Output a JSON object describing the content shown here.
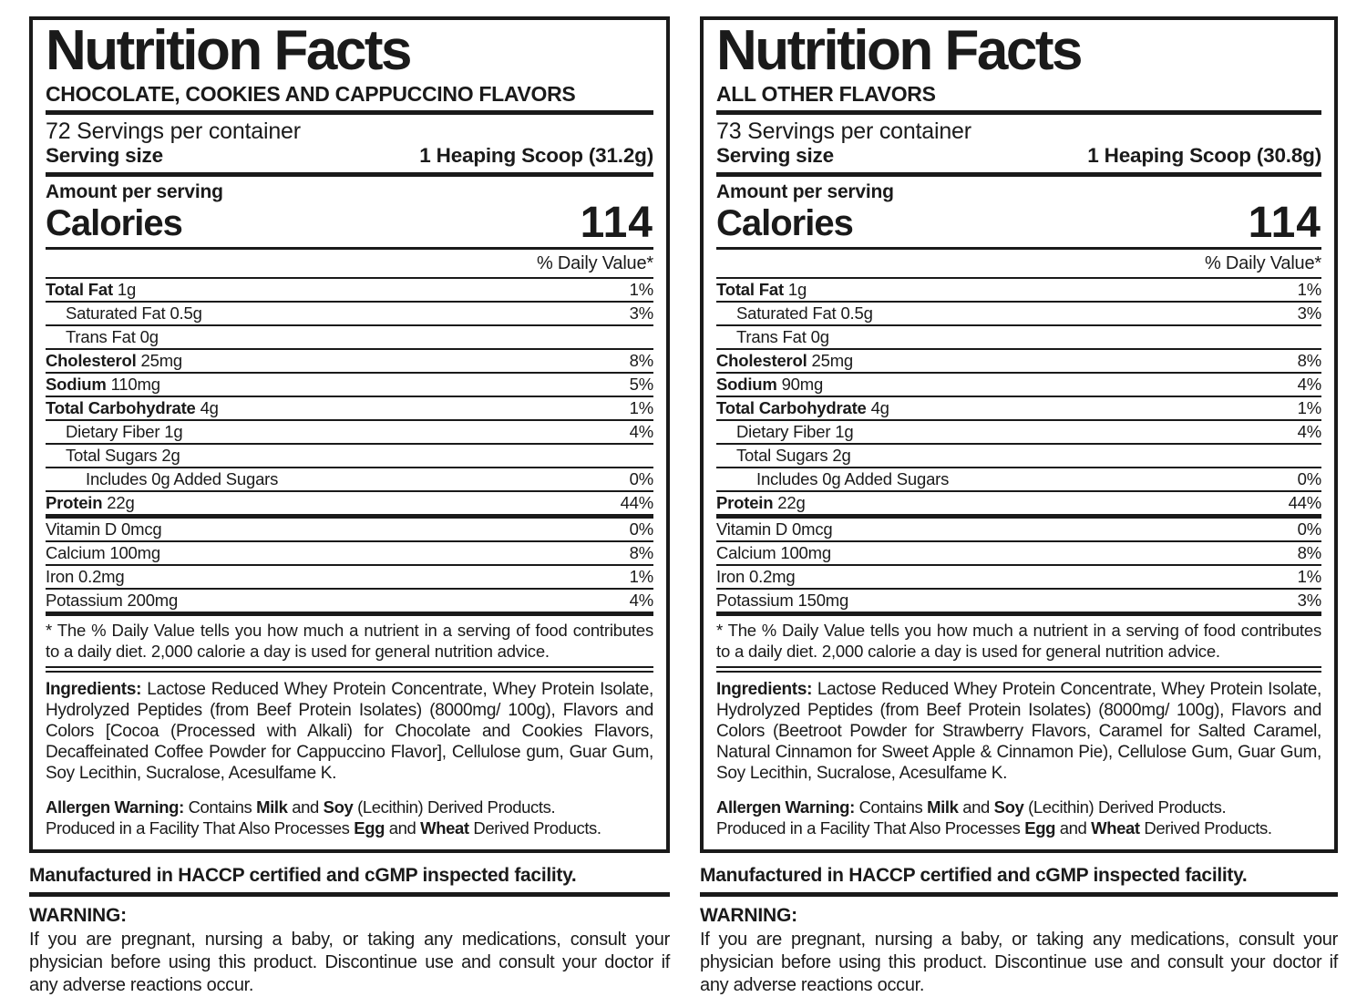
{
  "colors": {
    "ink": "#1a1a1a",
    "paper": "#ffffff"
  },
  "labels": [
    {
      "title": "Nutrition Facts",
      "flavor": "CHOCOLATE, COOKIES AND CAPPUCCINO FLAVORS",
      "servings_per_container": "72 Servings per container",
      "serving_size_label": "Serving size",
      "serving_size_value": "1 Heaping Scoop (31.2g)",
      "amount_per_serving": "Amount per serving",
      "calories_label": "Calories",
      "calories_value": "114",
      "daily_value_header": "% Daily Value*",
      "nutrients": [
        {
          "name": "Total Fat",
          "amount": "1g",
          "dv": "1%",
          "bold": true,
          "indent": 0
        },
        {
          "name": "Saturated Fat",
          "amount": "0.5g",
          "dv": "3%",
          "bold": false,
          "indent": 1
        },
        {
          "name": "Trans Fat",
          "amount": "0g",
          "dv": "",
          "bold": false,
          "indent": 1
        },
        {
          "name": "Cholesterol",
          "amount": "25mg",
          "dv": "8%",
          "bold": true,
          "indent": 0
        },
        {
          "name": "Sodium",
          "amount": "110mg",
          "dv": "5%",
          "bold": true,
          "indent": 0
        },
        {
          "name": "Total Carbohydrate",
          "amount": "4g",
          "dv": "1%",
          "bold": true,
          "indent": 0
        },
        {
          "name": "Dietary Fiber",
          "amount": "1g",
          "dv": "4%",
          "bold": false,
          "indent": 1
        },
        {
          "name": "Total Sugars",
          "amount": "2g",
          "dv": "",
          "bold": false,
          "indent": 1
        },
        {
          "name": "Includes 0g Added Sugars",
          "amount": "",
          "dv": "0%",
          "bold": false,
          "indent": 2
        },
        {
          "name": "Protein",
          "amount": "22g",
          "dv": "44%",
          "bold": true,
          "indent": 0,
          "thick_after": true
        },
        {
          "name": "Vitamin D",
          "amount": "0mcg",
          "dv": "0%",
          "bold": false,
          "indent": 0
        },
        {
          "name": "Calcium",
          "amount": "100mg",
          "dv": "8%",
          "bold": false,
          "indent": 0
        },
        {
          "name": "Iron",
          "amount": "0.2mg",
          "dv": "1%",
          "bold": false,
          "indent": 0
        },
        {
          "name": "Potassium",
          "amount": "200mg",
          "dv": "4%",
          "bold": false,
          "indent": 0,
          "thick_after": true
        }
      ],
      "footnote": "* The % Daily Value tells you how much a nutrient in a serving of food contributes to a daily diet. 2,000 calorie a day is used for general nutrition advice.",
      "ingredients_label": "Ingredients:",
      "ingredients_text": "Lactose Reduced Whey Protein Concentrate, Whey Protein Isolate, Hydrolyzed Peptides (from Beef Protein Isolates) (8000mg/ 100g), Flavors and Colors [Cocoa (Processed with Alkali) for Chocolate and Cookies Flavors, Decaffeinated Coffee Powder for Cappuccino Flavor], Cellulose gum, Guar Gum, Soy Lecithin, Sucralose, Acesulfame K.",
      "allergen_lines": [
        [
          {
            "t": "Allergen Warning:",
            "b": true
          },
          {
            "t": " Contains ",
            "b": false
          },
          {
            "t": "Milk",
            "b": true
          },
          {
            "t": " and ",
            "b": false
          },
          {
            "t": "Soy",
            "b": true
          },
          {
            "t": " (Lecithin) Derived Products.",
            "b": false
          }
        ],
        [
          {
            "t": "Produced in a Facility That Also Processes ",
            "b": false
          },
          {
            "t": "Egg",
            "b": true
          },
          {
            "t": " and ",
            "b": false
          },
          {
            "t": "Wheat",
            "b": true
          },
          {
            "t": " Derived Products.",
            "b": false
          }
        ]
      ],
      "manufactured": "Manufactured in HACCP certified and cGMP inspected facility.",
      "warning_label": "WARNING:",
      "warning_text": "If you are pregnant, nursing a baby, or taking any medications, consult your physician before using this product. Discontinue use and consult your doctor if any adverse reactions occur."
    },
    {
      "title": "Nutrition Facts",
      "flavor": "ALL OTHER FLAVORS",
      "servings_per_container": "73 Servings per container",
      "serving_size_label": "Serving size",
      "serving_size_value": "1 Heaping Scoop (30.8g)",
      "amount_per_serving": "Amount per serving",
      "calories_label": "Calories",
      "calories_value": "114",
      "daily_value_header": "% Daily Value*",
      "nutrients": [
        {
          "name": "Total Fat",
          "amount": "1g",
          "dv": "1%",
          "bold": true,
          "indent": 0
        },
        {
          "name": "Saturated Fat",
          "amount": "0.5g",
          "dv": "3%",
          "bold": false,
          "indent": 1
        },
        {
          "name": "Trans Fat",
          "amount": "0g",
          "dv": "",
          "bold": false,
          "indent": 1
        },
        {
          "name": "Cholesterol",
          "amount": "25mg",
          "dv": "8%",
          "bold": true,
          "indent": 0
        },
        {
          "name": "Sodium",
          "amount": "90mg",
          "dv": "4%",
          "bold": true,
          "indent": 0
        },
        {
          "name": "Total Carbohydrate",
          "amount": "4g",
          "dv": "1%",
          "bold": true,
          "indent": 0
        },
        {
          "name": "Dietary Fiber",
          "amount": "1g",
          "dv": "4%",
          "bold": false,
          "indent": 1
        },
        {
          "name": "Total Sugars",
          "amount": "2g",
          "dv": "",
          "bold": false,
          "indent": 1
        },
        {
          "name": "Includes 0g Added Sugars",
          "amount": "",
          "dv": "0%",
          "bold": false,
          "indent": 2
        },
        {
          "name": "Protein",
          "amount": "22g",
          "dv": "44%",
          "bold": true,
          "indent": 0,
          "thick_after": true
        },
        {
          "name": "Vitamin D",
          "amount": "0mcg",
          "dv": "0%",
          "bold": false,
          "indent": 0
        },
        {
          "name": "Calcium",
          "amount": "100mg",
          "dv": "8%",
          "bold": false,
          "indent": 0
        },
        {
          "name": "Iron",
          "amount": "0.2mg",
          "dv": "1%",
          "bold": false,
          "indent": 0
        },
        {
          "name": "Potassium",
          "amount": "150mg",
          "dv": "3%",
          "bold": false,
          "indent": 0,
          "thick_after": true
        }
      ],
      "footnote": "* The % Daily Value tells you how much a nutrient in a serving of food contributes to a daily diet. 2,000 calorie a day is used for general nutrition advice.",
      "ingredients_label": "Ingredients:",
      "ingredients_text": "Lactose Reduced Whey Protein Concentrate, Whey Protein Isolate, Hydrolyzed Peptides (from Beef Protein Isolates) (8000mg/ 100g), Flavors and Colors (Beetroot Powder for Strawberry Flavors, Caramel for Salted Caramel, Natural Cinnamon for Sweet Apple & Cinnamon Pie), Cellulose Gum, Guar Gum, Soy Lecithin, Sucralose, Acesulfame K.",
      "allergen_lines": [
        [
          {
            "t": "Allergen Warning:",
            "b": true
          },
          {
            "t": " Contains ",
            "b": false
          },
          {
            "t": "Milk",
            "b": true
          },
          {
            "t": " and ",
            "b": false
          },
          {
            "t": "Soy",
            "b": true
          },
          {
            "t": " (Lecithin) Derived Products.",
            "b": false
          }
        ],
        [
          {
            "t": "Produced in a Facility That Also Processes ",
            "b": false
          },
          {
            "t": "Egg",
            "b": true
          },
          {
            "t": " and ",
            "b": false
          },
          {
            "t": "Wheat",
            "b": true
          },
          {
            "t": " Derived Products.",
            "b": false
          }
        ]
      ],
      "manufactured": "Manufactured in HACCP certified and cGMP inspected facility.",
      "warning_label": "WARNING:",
      "warning_text": "If you are pregnant, nursing a baby, or taking any medications, consult your physician before using this product. Discontinue use and consult your doctor if any adverse reactions occur."
    }
  ]
}
